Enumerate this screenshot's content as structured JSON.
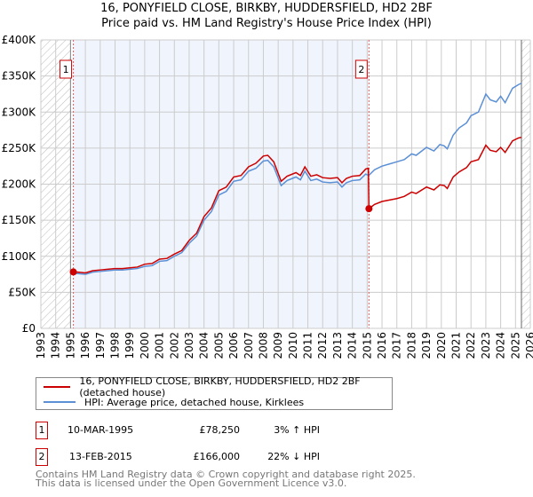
{
  "title": "16, PONYFIELD CLOSE, BIRKBY, HUDDERSFIELD, HD2 2BF",
  "subtitle": "Price paid vs. HM Land Registry's House Price Index (HPI)",
  "chart_data": {
    "type": "line",
    "xlim": [
      1993,
      2026
    ],
    "ylim": [
      0,
      400000
    ],
    "x_ticks": [
      "1993",
      "1994",
      "1995",
      "1996",
      "1997",
      "1998",
      "1999",
      "2000",
      "2001",
      "2002",
      "2003",
      "2004",
      "2005",
      "2006",
      "2007",
      "2008",
      "2009",
      "2010",
      "2011",
      "2012",
      "2013",
      "2014",
      "2015",
      "2016",
      "2017",
      "2018",
      "2019",
      "2020",
      "2021",
      "2022",
      "2023",
      "2024",
      "2025",
      "2026"
    ],
    "y_ticks": [
      {
        "v": 0,
        "label": "£0"
      },
      {
        "v": 50000,
        "label": "£50K"
      },
      {
        "v": 100000,
        "label": "£100K"
      },
      {
        "v": 150000,
        "label": "£150K"
      },
      {
        "v": 200000,
        "label": "£200K"
      },
      {
        "v": 250000,
        "label": "£250K"
      },
      {
        "v": 300000,
        "label": "£300K"
      },
      {
        "v": 350000,
        "label": "£350K"
      },
      {
        "v": 400000,
        "label": "£400K"
      }
    ],
    "grid": true,
    "shaded_range": [
      1995.19,
      2015.12
    ],
    "hatched_before": 1995.0,
    "hatched_after": 2025.4,
    "series": [
      {
        "name": "16, PONYFIELD CLOSE, BIRKBY, HUDDERSFIELD, HD2 2BF (detached house)",
        "color": "#cc0000",
        "unit": "K",
        "points": [
          [
            1995.19,
            78.25
          ],
          [
            1995.5,
            78
          ],
          [
            1996,
            77
          ],
          [
            1996.5,
            80
          ],
          [
            1997,
            81
          ],
          [
            1997.5,
            82
          ],
          [
            1998,
            83
          ],
          [
            1998.5,
            83
          ],
          [
            1999,
            84
          ],
          [
            1999.5,
            85
          ],
          [
            2000,
            89
          ],
          [
            2000.5,
            90
          ],
          [
            2001,
            96
          ],
          [
            2001.5,
            97
          ],
          [
            2002,
            103
          ],
          [
            2002.5,
            108
          ],
          [
            2003,
            122
          ],
          [
            2003.5,
            132
          ],
          [
            2004,
            155
          ],
          [
            2004.5,
            167
          ],
          [
            2005,
            191
          ],
          [
            2005.5,
            196
          ],
          [
            2006,
            210
          ],
          [
            2006.5,
            212
          ],
          [
            2007,
            224
          ],
          [
            2007.5,
            229
          ],
          [
            2008,
            239
          ],
          [
            2008.3,
            240
          ],
          [
            2008.7,
            231
          ],
          [
            2009.2,
            204
          ],
          [
            2009.6,
            211
          ],
          [
            2010.2,
            216
          ],
          [
            2010.5,
            212
          ],
          [
            2010.8,
            224
          ],
          [
            2011.2,
            211
          ],
          [
            2011.6,
            213
          ],
          [
            2012,
            209
          ],
          [
            2012.5,
            208
          ],
          [
            2013,
            209
          ],
          [
            2013.3,
            202
          ],
          [
            2013.6,
            208
          ],
          [
            2014,
            211
          ],
          [
            2014.5,
            212
          ],
          [
            2014.9,
            221
          ],
          [
            2015.08,
            222
          ],
          [
            2015.12,
            166
          ],
          [
            2015.5,
            172
          ],
          [
            2016,
            176
          ],
          [
            2016.5,
            178
          ],
          [
            2017,
            180
          ],
          [
            2017.5,
            183
          ],
          [
            2018,
            189
          ],
          [
            2018.3,
            187
          ],
          [
            2019,
            196
          ],
          [
            2019.5,
            192
          ],
          [
            2019.9,
            199
          ],
          [
            2020.2,
            198
          ],
          [
            2020.4,
            194
          ],
          [
            2020.8,
            210
          ],
          [
            2021.2,
            217
          ],
          [
            2021.7,
            223
          ],
          [
            2022,
            231
          ],
          [
            2022.5,
            234
          ],
          [
            2023,
            254
          ],
          [
            2023.3,
            247
          ],
          [
            2023.7,
            245
          ],
          [
            2024,
            251
          ],
          [
            2024.3,
            244
          ],
          [
            2024.8,
            260
          ],
          [
            2025.2,
            264
          ],
          [
            2025.4,
            265
          ]
        ]
      },
      {
        "name": "HPI: Average price, detached house, Kirklees",
        "color": "#5b8fd6",
        "unit": "K",
        "points": [
          [
            1995,
            76
          ],
          [
            1995.5,
            76
          ],
          [
            1996,
            75
          ],
          [
            1996.5,
            78
          ],
          [
            1997,
            79
          ],
          [
            1997.5,
            80
          ],
          [
            1998,
            81
          ],
          [
            1998.5,
            81
          ],
          [
            1999,
            82
          ],
          [
            1999.5,
            83
          ],
          [
            2000,
            86
          ],
          [
            2000.5,
            87
          ],
          [
            2001,
            93
          ],
          [
            2001.5,
            94
          ],
          [
            2002,
            100
          ],
          [
            2002.5,
            105
          ],
          [
            2003,
            118
          ],
          [
            2003.5,
            128
          ],
          [
            2004,
            150
          ],
          [
            2004.5,
            162
          ],
          [
            2005,
            185
          ],
          [
            2005.5,
            190
          ],
          [
            2006,
            204
          ],
          [
            2006.5,
            206
          ],
          [
            2007,
            218
          ],
          [
            2007.5,
            222
          ],
          [
            2008,
            232
          ],
          [
            2008.3,
            233
          ],
          [
            2008.7,
            224
          ],
          [
            2009.2,
            198
          ],
          [
            2009.6,
            205
          ],
          [
            2010.2,
            210
          ],
          [
            2010.5,
            206
          ],
          [
            2010.8,
            218
          ],
          [
            2011.2,
            205
          ],
          [
            2011.6,
            207
          ],
          [
            2012,
            203
          ],
          [
            2012.5,
            202
          ],
          [
            2013,
            203
          ],
          [
            2013.3,
            196
          ],
          [
            2013.6,
            202
          ],
          [
            2014,
            205
          ],
          [
            2014.5,
            206
          ],
          [
            2014.9,
            214
          ],
          [
            2015.1,
            212
          ],
          [
            2015.5,
            220
          ],
          [
            2016,
            225
          ],
          [
            2016.5,
            228
          ],
          [
            2017,
            231
          ],
          [
            2017.5,
            234
          ],
          [
            2018,
            242
          ],
          [
            2018.3,
            240
          ],
          [
            2019,
            251
          ],
          [
            2019.5,
            246
          ],
          [
            2019.9,
            255
          ],
          [
            2020.2,
            253
          ],
          [
            2020.4,
            249
          ],
          [
            2020.8,
            268
          ],
          [
            2021.2,
            278
          ],
          [
            2021.7,
            285
          ],
          [
            2022,
            295
          ],
          [
            2022.5,
            300
          ],
          [
            2023,
            325
          ],
          [
            2023.3,
            317
          ],
          [
            2023.7,
            314
          ],
          [
            2024,
            322
          ],
          [
            2024.3,
            313
          ],
          [
            2024.8,
            333
          ],
          [
            2025.2,
            338
          ],
          [
            2025.4,
            340
          ]
        ]
      }
    ],
    "annotations": [
      {
        "label": "1",
        "x": 1995.19,
        "y": 78.25
      },
      {
        "label": "2",
        "x": 2015.12,
        "y": 166
      }
    ]
  },
  "legend": {
    "items": [
      {
        "label": "16, PONYFIELD CLOSE, BIRKBY, HUDDERSFIELD, HD2 2BF (detached house)"
      },
      {
        "label": "HPI: Average price, detached house, Kirklees"
      }
    ]
  },
  "sales": [
    {
      "num": "1",
      "date": "10-MAR-1995",
      "price": "£78,250",
      "hpi": "3% ↑ HPI"
    },
    {
      "num": "2",
      "date": "13-FEB-2015",
      "price": "£166,000",
      "hpi": "22% ↓ HPI"
    }
  ],
  "footer": {
    "line1": "Contains HM Land Registry data © Crown copyright and database right 2025.",
    "line2": "This data is licensed under the Open Government Licence v3.0."
  }
}
